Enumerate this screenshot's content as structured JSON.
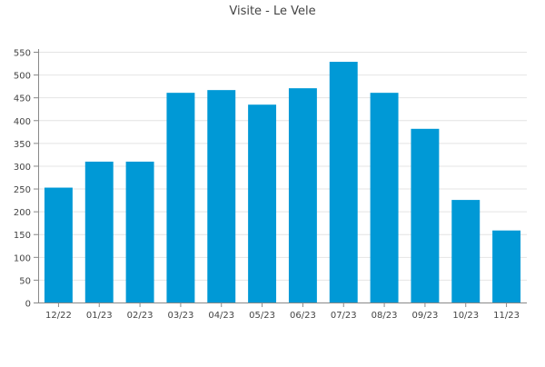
{
  "chart_data": {
    "type": "bar",
    "title": "Visite - Le Vele",
    "categories": [
      "12/22",
      "01/23",
      "02/23",
      "03/23",
      "04/23",
      "05/23",
      "06/23",
      "07/23",
      "08/23",
      "09/23",
      "10/23",
      "11/23"
    ],
    "values": [
      252,
      309,
      309,
      460,
      466,
      434,
      470,
      528,
      460,
      381,
      225,
      158
    ],
    "ylim": [
      0,
      550
    ],
    "yticks": [
      0,
      50,
      100,
      150,
      200,
      250,
      300,
      350,
      400,
      450,
      500,
      550
    ],
    "grid": true,
    "bar_color": "#0099d6",
    "grid_color": "#e4e4e4",
    "axis_color": "#888888",
    "text_color": "#444444"
  }
}
